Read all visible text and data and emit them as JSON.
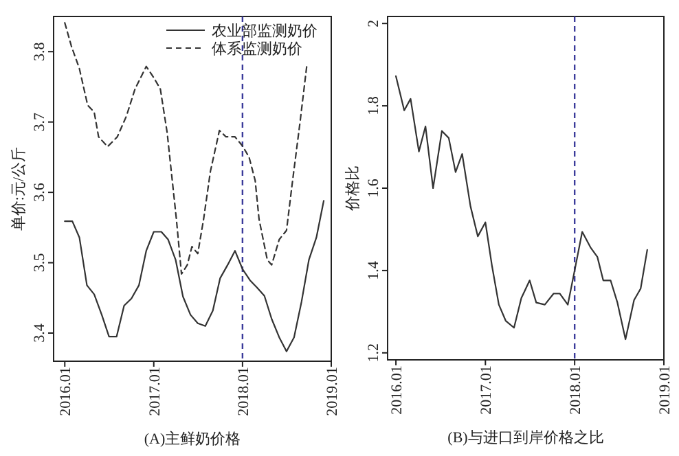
{
  "chart_data": [
    {
      "type": "line",
      "xlabel": "(A)主鲜奶价格",
      "ylabel": "单价:元/公斤",
      "legend": "top right",
      "xlim": [
        "2015-11-16",
        "2019-01"
      ],
      "xticks": [
        {
          "value": "2016-01",
          "label": "2016.01"
        },
        {
          "value": "2017-01",
          "label": "2017.01"
        },
        {
          "value": "2018-01",
          "label": "2018.01"
        },
        {
          "value": "2019-01",
          "label": "2019.01"
        }
      ],
      "ylim": [
        3.36,
        3.85
      ],
      "yticks": [
        3.4,
        3.5,
        3.6,
        3.7,
        3.8
      ],
      "ref_lines": [
        {
          "axis": "x",
          "value": "2018-01",
          "color": "#3a3a9a",
          "line_style": "dashed"
        }
      ],
      "series": [
        {
          "name": "农业部监测奶价",
          "color": "#333333",
          "line_style": "solid",
          "x": [
            "2016-01",
            "2016-02",
            "2016-03",
            "2016-04",
            "2016-05",
            "2016-06",
            "2016-07",
            "2016-08",
            "2016-09",
            "2016-10",
            "2016-11",
            "2016-12",
            "2017-01",
            "2017-02",
            "2017-03",
            "2017-04",
            "2017-05",
            "2017-06",
            "2017-07",
            "2017-08",
            "2017-09",
            "2017-10",
            "2017-11",
            "2017-12",
            "2018-01",
            "2018-02",
            "2018-03",
            "2018-04",
            "2018-05",
            "2018-06",
            "2018-07",
            "2018-08",
            "2018-09",
            "2018-10",
            "2018-11",
            "2018-12"
          ],
          "values": [
            3.559,
            3.559,
            3.536,
            3.468,
            3.455,
            3.426,
            3.395,
            3.395,
            3.439,
            3.449,
            3.468,
            3.517,
            3.544,
            3.544,
            3.533,
            3.504,
            3.452,
            3.426,
            3.414,
            3.41,
            3.432,
            3.478,
            3.497,
            3.517,
            3.491,
            3.475,
            3.465,
            3.453,
            3.42,
            3.394,
            3.374,
            3.394,
            3.445,
            3.504,
            3.536,
            3.588
          ]
        },
        {
          "name": "体系监测奶价",
          "color": "#333333",
          "line_style": "dashed",
          "x": [
            "2016-01-01",
            "2016-01-28",
            "2016-03-01",
            "2016-04-04",
            "2016-05-01",
            "2016-05-19",
            "2016-06-25",
            "2016-08-04",
            "2016-09-10",
            "2016-10-16",
            "2016-12-01",
            "2017-01-01",
            "2017-01-28",
            "2017-02-25",
            "2017-04-04",
            "2017-04-25",
            "2017-05-19",
            "2017-06-07",
            "2017-07-01",
            "2017-07-25",
            "2017-08-22",
            "2017-09-28",
            "2017-10-25",
            "2017-12-01",
            "2018-01-01",
            "2018-01-28",
            "2018-02-22",
            "2018-03-10",
            "2018-04-13",
            "2018-05-01",
            "2018-06-01",
            "2018-07-01",
            "2018-07-25",
            "2018-08-25",
            "2018-09-22"
          ],
          "values": [
            3.841,
            3.808,
            3.776,
            3.724,
            3.714,
            3.679,
            3.665,
            3.679,
            3.708,
            3.747,
            3.779,
            3.763,
            3.747,
            3.685,
            3.562,
            3.484,
            3.497,
            3.523,
            3.513,
            3.562,
            3.63,
            3.688,
            3.679,
            3.679,
            3.666,
            3.65,
            3.617,
            3.562,
            3.504,
            3.497,
            3.533,
            3.546,
            3.614,
            3.698,
            3.779
          ]
        }
      ]
    },
    {
      "type": "line",
      "xlabel": "(B)与进口到岸价格之比",
      "ylabel": "价格比",
      "xlim": [
        "2015-11-28",
        "2019-01"
      ],
      "xticks": [
        {
          "value": "2016-01",
          "label": "2016.01"
        },
        {
          "value": "2017-01",
          "label": "2017.01"
        },
        {
          "value": "2018-01",
          "label": "2018.01"
        },
        {
          "value": "2019-01",
          "label": "2019.01"
        }
      ],
      "ylim": [
        1.183,
        2.017
      ],
      "yticks": [
        1.2,
        1.4,
        1.6,
        1.8,
        2
      ],
      "ref_lines": [
        {
          "axis": "x",
          "value": "2018-01",
          "color": "#3a3a9a",
          "line_style": "dashed"
        }
      ],
      "series": [
        {
          "color": "#333333",
          "line_style": "solid",
          "x": [
            "2016-01-01",
            "2016-02-04",
            "2016-03-01",
            "2016-04-04",
            "2016-05-01",
            "2016-06-01",
            "2016-07-07",
            "2016-08-04",
            "2016-09-01",
            "2016-09-28",
            "2016-11-01",
            "2016-12-01",
            "2017-01-01",
            "2017-01-28",
            "2017-02-25",
            "2017-03-25",
            "2017-04-28",
            "2017-05-28",
            "2017-07-01",
            "2017-07-28",
            "2017-09-01",
            "2017-10-07",
            "2017-11-01",
            "2017-12-04",
            "2018-01-01",
            "2018-02-01",
            "2018-03-07",
            "2018-04-04",
            "2018-04-28",
            "2018-05-28",
            "2018-06-25",
            "2018-07-28",
            "2018-09-01",
            "2018-09-28",
            "2018-10-25"
          ],
          "values": [
            1.872,
            1.789,
            1.817,
            1.689,
            1.75,
            1.6,
            1.739,
            1.722,
            1.639,
            1.683,
            1.556,
            1.483,
            1.517,
            1.411,
            1.317,
            1.278,
            1.261,
            1.333,
            1.376,
            1.322,
            1.317,
            1.344,
            1.344,
            1.317,
            1.4,
            1.494,
            1.456,
            1.433,
            1.376,
            1.376,
            1.322,
            1.233,
            1.328,
            1.356,
            1.45
          ]
        }
      ]
    }
  ]
}
